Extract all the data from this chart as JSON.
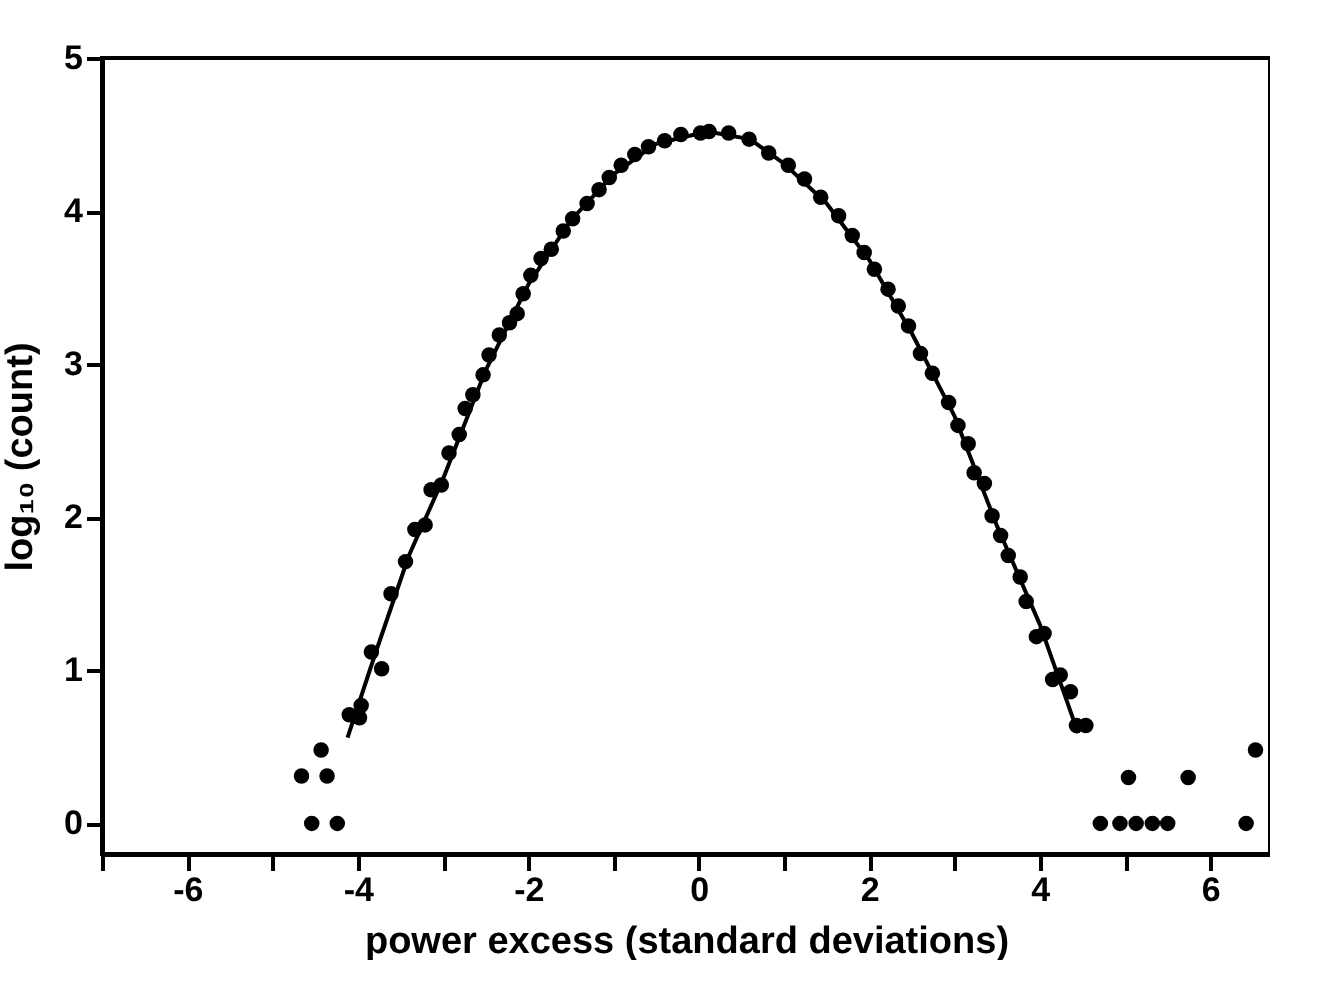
{
  "chart_data": {
    "type": "scatter",
    "xlabel": "power excess (standard deviations)",
    "ylabel": "log₁₀ (count)",
    "xlim": [
      -7,
      6.7
    ],
    "ylim": [
      -0.2,
      5
    ],
    "xticks": [
      {
        "value": -7,
        "label": null
      },
      -6,
      {
        "value": -5,
        "label": null
      },
      -4,
      {
        "value": -3,
        "label": null
      },
      -2,
      {
        "value": -1,
        "label": null
      },
      0,
      {
        "value": 1,
        "label": null
      },
      2,
      {
        "value": 3,
        "label": null
      },
      4,
      {
        "value": 5,
        "label": null
      },
      6
    ],
    "yticks": [
      0,
      1,
      2,
      3,
      4,
      5
    ],
    "grid": false,
    "series": [
      {
        "type": "scatter",
        "marker": "circle",
        "color": "#000000",
        "x": [
          -4.66,
          -4.54,
          -4.43,
          -4.36,
          -4.24,
          -4.1,
          -3.98,
          -3.96,
          -3.84,
          -3.72,
          -3.61,
          -3.44,
          -3.33,
          -3.21,
          -3.14,
          -3.02,
          -2.93,
          -2.81,
          -2.74,
          -2.65,
          -2.53,
          -2.46,
          -2.34,
          -2.22,
          -2.13,
          -2.06,
          -1.97,
          -1.85,
          -1.73,
          -1.59,
          -1.48,
          -1.31,
          -1.17,
          -1.05,
          -0.91,
          -0.75,
          -0.59,
          -0.4,
          -0.21,
          0.02,
          0.12,
          0.35,
          0.59,
          0.82,
          1.05,
          1.24,
          1.43,
          1.64,
          1.8,
          1.94,
          2.06,
          2.22,
          2.34,
          2.46,
          2.6,
          2.74,
          2.93,
          3.04,
          3.16,
          3.23,
          3.35,
          3.44,
          3.54,
          3.63,
          3.77,
          3.84,
          3.96,
          4.05,
          4.15,
          4.24,
          4.36,
          4.43,
          4.54,
          4.71,
          4.94,
          5.04,
          5.13,
          5.32,
          5.5,
          5.74,
          6.42,
          6.53
        ],
        "values": [
          0.31,
          0,
          0.48,
          0.31,
          0,
          0.71,
          0.69,
          0.77,
          1.12,
          1.01,
          1.5,
          1.71,
          1.92,
          1.95,
          2.18,
          2.21,
          2.42,
          2.54,
          2.71,
          2.8,
          2.93,
          3.06,
          3.19,
          3.27,
          3.33,
          3.46,
          3.58,
          3.69,
          3.75,
          3.87,
          3.95,
          4.05,
          4.14,
          4.22,
          4.3,
          4.37,
          4.42,
          4.46,
          4.5,
          4.51,
          4.52,
          4.51,
          4.47,
          4.38,
          4.3,
          4.21,
          4.09,
          3.97,
          3.84,
          3.73,
          3.62,
          3.49,
          3.38,
          3.25,
          3.07,
          2.94,
          2.75,
          2.6,
          2.48,
          2.29,
          2.22,
          2.01,
          1.88,
          1.75,
          1.61,
          1.45,
          1.22,
          1.24,
          0.94,
          0.97,
          0.86,
          0.64,
          0.64,
          0,
          0,
          0.3,
          0,
          0,
          0,
          0.3,
          0,
          0.48
        ]
      },
      {
        "type": "line",
        "marker": "none",
        "line_style": "solid",
        "color": "#000000",
        "x": [
          -4.12,
          -3.8,
          -3.4,
          -3.0,
          -2.5,
          -2.0,
          -1.5,
          -1.0,
          -0.5,
          0.1,
          0.6,
          1.0,
          1.5,
          2.0,
          2.5,
          3.0,
          3.5,
          4.0,
          4.45
        ],
        "values": [
          0.56,
          1.1,
          1.75,
          2.25,
          2.96,
          3.52,
          3.94,
          4.24,
          4.44,
          4.52,
          4.47,
          4.31,
          4.05,
          3.68,
          3.2,
          2.66,
          1.94,
          1.3,
          0.59
        ]
      }
    ]
  }
}
